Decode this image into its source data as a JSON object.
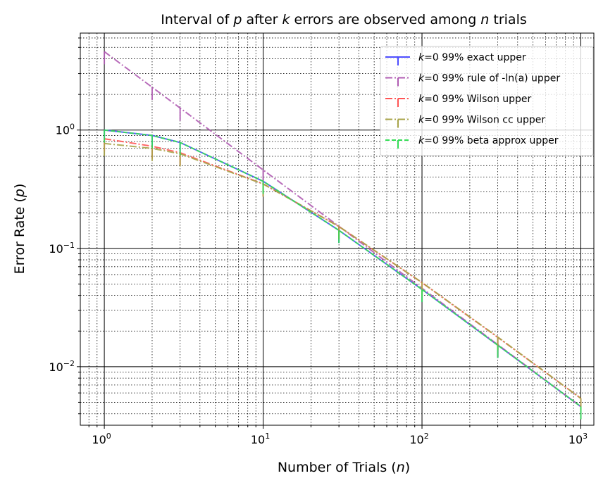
{
  "chart_data": {
    "type": "line",
    "title_parts": [
      "Interval of ",
      "p",
      " after ",
      "k",
      " errors are observed among ",
      "n",
      " trials"
    ],
    "xlabel_parts": [
      "Number of Trials (",
      "n",
      ")"
    ],
    "ylabel_parts": [
      "Error Rate (",
      "p",
      ")"
    ],
    "x_scale": "log",
    "y_scale": "log",
    "xlim": [
      0.706,
      1208
    ],
    "ylim": [
      0.0032,
      6.6
    ],
    "grid": "major solid, minor dotted",
    "legend_placement": "top-right",
    "x_ticks": [
      {
        "base": "10",
        "exp": "0",
        "value": 1
      },
      {
        "base": "10",
        "exp": "1",
        "value": 10
      },
      {
        "base": "10",
        "exp": "2",
        "value": 100
      },
      {
        "base": "10",
        "exp": "3",
        "value": 1000
      }
    ],
    "y_ticks": [
      {
        "base": "10",
        "exp": "0",
        "value": 1
      },
      {
        "base": "10",
        "exp": "−1",
        "value": 0.1
      },
      {
        "base": "10",
        "exp": "−2",
        "value": 0.01
      }
    ],
    "x": [
      1,
      2,
      3,
      10,
      30,
      100,
      300,
      1000
    ],
    "series": [
      {
        "name": "k=0 99% exact upper",
        "name_italic": "k",
        "name_rest": "=0 99% exact upper",
        "color": "#4d4dff",
        "dash": "",
        "values": [
          1.0,
          0.9,
          0.785,
          0.369,
          0.142,
          0.045,
          0.0152,
          0.0046
        ]
      },
      {
        "name": "k=0 99% rule of -ln(a) upper",
        "name_italic": "k",
        "name_rest": "=0 99% rule of -ln(a) upper",
        "color": "#b05cb3",
        "dash": "10,3,2,3",
        "values": [
          4.6,
          2.3,
          1.535,
          0.46,
          0.1535,
          0.046,
          0.01535,
          0.0046
        ]
      },
      {
        "name": "k=0 99% Wilson upper",
        "name_italic": "k",
        "name_rest": "=0 99% Wilson upper",
        "color": "#ff5555",
        "dash": "10,3,2,3",
        "values": [
          0.844,
          0.73,
          0.643,
          0.351,
          0.153,
          0.0513,
          0.0177,
          0.0054
        ]
      },
      {
        "name": "k=0 99% Wilson cc upper",
        "name_italic": "k",
        "name_rest": "=0 99% Wilson cc upper",
        "color": "#a8a44a",
        "dash": "10,3,2,3",
        "values": [
          0.77,
          0.7,
          0.63,
          0.35,
          0.153,
          0.0515,
          0.0178,
          0.0054
        ]
      },
      {
        "name": "k=0 99% beta approx upper",
        "name_italic": "k",
        "name_rest": "=0 99% beta approx upper",
        "color": "#33dd55",
        "dash": "6,3",
        "values": [
          1.0,
          0.9,
          0.785,
          0.369,
          0.142,
          0.045,
          0.0152,
          0.0046
        ]
      }
    ]
  }
}
